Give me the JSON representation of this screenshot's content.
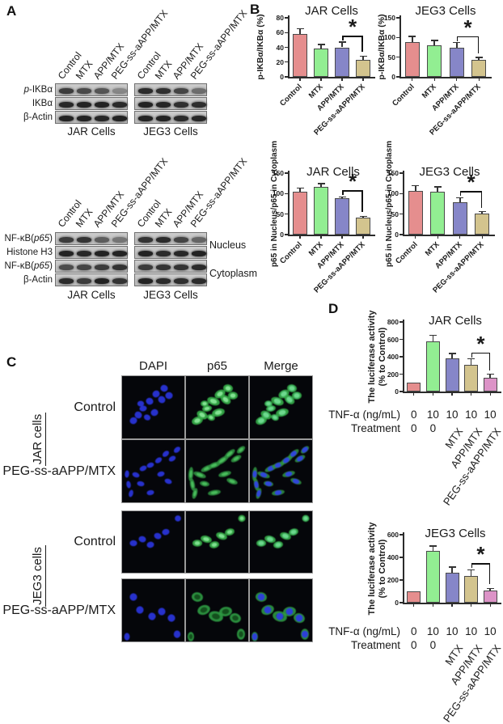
{
  "figure": {
    "panel_labels": {
      "A": "A",
      "B": "B",
      "C": "C",
      "D": "D"
    }
  },
  "panel_a": {
    "top": {
      "lane_labels": [
        "Control",
        "MTX",
        "APP/MTX",
        "PEG-ss-aAPP/MTX"
      ],
      "row_labels": [
        "p-IKBα",
        "IKBα",
        "β-Actin"
      ],
      "group_labels": [
        "JAR Cells",
        "JEG3 Cells"
      ],
      "band_intensities": {
        "jar": [
          [
            0.8,
            0.72,
            0.65,
            0.35
          ],
          [
            0.92,
            0.95,
            0.95,
            0.9
          ],
          [
            0.95,
            0.95,
            0.92,
            0.95
          ]
        ],
        "jeg3": [
          [
            0.9,
            0.88,
            0.75,
            0.5
          ],
          [
            0.95,
            0.93,
            0.88,
            0.88
          ],
          [
            0.95,
            0.95,
            0.9,
            0.92
          ]
        ]
      }
    },
    "bottom": {
      "lane_labels": [
        "Control",
        "MTX",
        "APP/MTX",
        "PEG-ss-aAPP/MTX"
      ],
      "row_labels": [
        "NF-κB(p65)",
        "Histone H3",
        "NF-κB(p65)",
        "β-Actin"
      ],
      "fraction_labels": [
        "Nucleus",
        "Cytoplasm"
      ],
      "group_labels": [
        "JAR Cells",
        "JEG3 Cells"
      ],
      "band_intensities": {
        "jar": [
          [
            0.8,
            0.85,
            0.6,
            0.45
          ],
          [
            0.95,
            0.92,
            0.95,
            0.95
          ],
          [
            0.7,
            0.75,
            0.8,
            0.85
          ],
          [
            0.9,
            0.8,
            0.95,
            0.85
          ]
        ],
        "jeg3": [
          [
            0.85,
            0.9,
            0.75,
            0.55
          ],
          [
            0.95,
            0.9,
            0.92,
            0.95
          ],
          [
            0.8,
            0.85,
            0.85,
            0.9
          ],
          [
            0.95,
            0.9,
            0.88,
            0.9
          ]
        ]
      }
    }
  },
  "panel_c": {
    "col_headers": [
      "DAPI",
      "p65",
      "Merge"
    ],
    "rows": [
      {
        "group": "JAR cells",
        "treatment": "Control"
      },
      {
        "group": "JAR cells",
        "treatment": "PEG-ss-aAPP/MTX"
      },
      {
        "group": "JEG3 cells",
        "treatment": "Control"
      },
      {
        "group": "JEG3 cells",
        "treatment": "PEG-ss-aAPP/MTX"
      }
    ],
    "group_labels": [
      "JAR cells",
      "JEG3 cells"
    ]
  },
  "colors": {
    "bars": [
      "#E58E8E",
      "#92EE92",
      "#8686C8",
      "#D3C48E",
      "#DC93C7"
    ],
    "pattern_bar_index": 3,
    "error_bar": "#333333",
    "axis": "#2b2b2b",
    "dapi_blue": "#2a35dd",
    "p65_green": "#37b14a"
  },
  "chart_data": [
    {
      "id": "b_jar_ikba",
      "panel": "B",
      "type": "bar",
      "title": "JAR Cells",
      "ylabel": "p-IKBα/IKBα (%)",
      "ylim": [
        0,
        80
      ],
      "yticks": [
        0,
        20,
        40,
        60,
        80
      ],
      "categories": [
        "Control",
        "MTX",
        "APP/MTX",
        "PEG-ss-aAPP/MTX"
      ],
      "values": [
        58,
        38,
        40,
        23
      ],
      "errors": [
        7,
        6,
        7,
        5
      ],
      "significance": {
        "pair": [
          2,
          3
        ],
        "label": "*"
      }
    },
    {
      "id": "b_jeg3_ikba",
      "panel": "B",
      "type": "bar",
      "title": "JEG3 Cells",
      "ylabel": "p-IKBα/IKBα (%)",
      "ylim": [
        0,
        150
      ],
      "yticks": [
        0,
        50,
        100,
        150
      ],
      "categories": [
        "Control",
        "MTX",
        "APP/MTX",
        "PEG-ss-aAPP/MTX"
      ],
      "values": [
        89,
        80,
        74,
        43
      ],
      "errors": [
        14,
        13,
        13,
        6
      ],
      "significance": {
        "pair": [
          2,
          3
        ],
        "label": "*"
      }
    },
    {
      "id": "b_jar_p65",
      "panel": "B",
      "type": "bar",
      "title": "JAR Cells",
      "ylabel": "p65 in Nucleus/p65 in Cytoplasm",
      "ylim": [
        0,
        150
      ],
      "yticks": [
        0,
        50,
        100,
        150
      ],
      "categories": [
        "Control",
        "MTX",
        "APP/MTX",
        "PEG-ss-aAPP/MTX"
      ],
      "values": [
        104,
        117,
        88,
        42
      ],
      "errors": [
        10,
        7,
        4,
        3
      ],
      "significance": {
        "pair": [
          2,
          3
        ],
        "label": "*"
      }
    },
    {
      "id": "b_jeg3_p65",
      "panel": "B",
      "type": "bar",
      "title": "JEG3 Cells",
      "ylabel": "p65 in Nucleus/p65 in Cytoplasm",
      "ylim": [
        0,
        150
      ],
      "yticks": [
        0,
        50,
        100,
        150
      ],
      "categories": [
        "Control",
        "MTX",
        "APP/MTX",
        "PEG-ss-aAPP/MTX"
      ],
      "values": [
        106,
        104,
        78,
        52
      ],
      "errors": [
        14,
        13,
        12,
        4
      ],
      "significance": {
        "pair": [
          2,
          3
        ],
        "label": "*"
      }
    },
    {
      "id": "d_jar_luc",
      "panel": "D",
      "type": "bar",
      "title": "JAR Cells",
      "ylabel": "The luciferase activity (% to Control)",
      "ylabel_lines": [
        "The luciferase activity",
        "(% to Control)"
      ],
      "ylim": [
        0,
        800
      ],
      "yticks": [
        0,
        200,
        400,
        600,
        800
      ],
      "x_rows": [
        {
          "label": "TNF-α (ng/mL)",
          "values": [
            "0",
            "10",
            "10",
            "10",
            "10"
          ]
        },
        {
          "label": "Treatment",
          "values": [
            "0",
            "0",
            "MTX",
            "APP/MTX",
            "PEG-ss-aAPP/MTX"
          ],
          "rotated_from_index": 2
        }
      ],
      "values": [
        100,
        575,
        385,
        305,
        155
      ],
      "errors": [
        0,
        70,
        55,
        70,
        45
      ],
      "significance": {
        "pair": [
          3,
          4
        ],
        "label": "*"
      }
    },
    {
      "id": "d_jeg3_luc",
      "panel": "D",
      "type": "bar",
      "title": "JEG3 Cells",
      "ylabel": "The luciferase activity (% to Control)",
      "ylabel_lines": [
        "The luciferase activity",
        "(% to Control)"
      ],
      "ylim": [
        0,
        600
      ],
      "yticks": [
        0,
        200,
        400,
        600
      ],
      "x_rows": [
        {
          "label": "TNF-α (ng/mL)",
          "values": [
            "0",
            "10",
            "10",
            "10",
            "10"
          ]
        },
        {
          "label": "Treatment",
          "values": [
            "0",
            "0",
            "MTX",
            "APP/MTX",
            "PEG-ss-aAPP/MTX"
          ],
          "rotated_from_index": 2
        }
      ],
      "values": [
        100,
        455,
        265,
        235,
        105
      ],
      "errors": [
        0,
        45,
        50,
        55,
        20
      ],
      "significance": {
        "pair": [
          3,
          4
        ],
        "label": "*"
      }
    }
  ]
}
